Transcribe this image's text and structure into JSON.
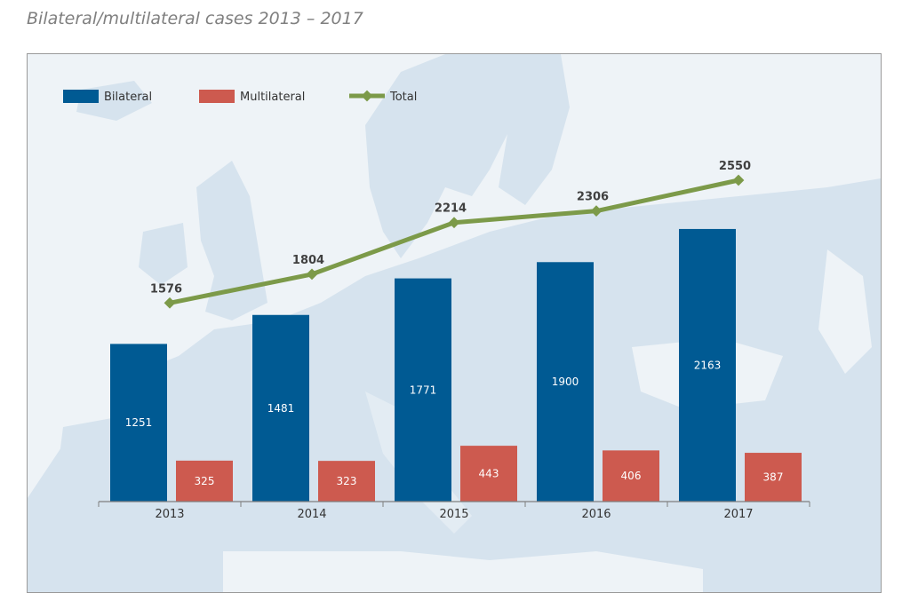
{
  "chart_data": {
    "type": "bar",
    "title": "Bilateral/multilateral cases 2013 – 2017",
    "categories": [
      "2013",
      "2014",
      "2015",
      "2016",
      "2017"
    ],
    "series": [
      {
        "name": "Bilateral",
        "type": "bar",
        "values": [
          1251,
          1481,
          1771,
          1900,
          2163
        ]
      },
      {
        "name": "Multilateral",
        "type": "bar",
        "values": [
          325,
          323,
          443,
          406,
          387
        ]
      },
      {
        "name": "Total",
        "type": "line",
        "values": [
          1576,
          1804,
          2214,
          2306,
          2550
        ]
      }
    ],
    "ylim": [
      0,
      2550
    ],
    "legend": "top-left",
    "grid": false,
    "colors": {
      "Bilateral": "#005a93",
      "Multilateral": "#cd5a4f",
      "Total": "#7c9a49",
      "axis": "#7f7f7f",
      "map_land": "#d6e3ee",
      "map_sea": "#eef3f7"
    }
  }
}
